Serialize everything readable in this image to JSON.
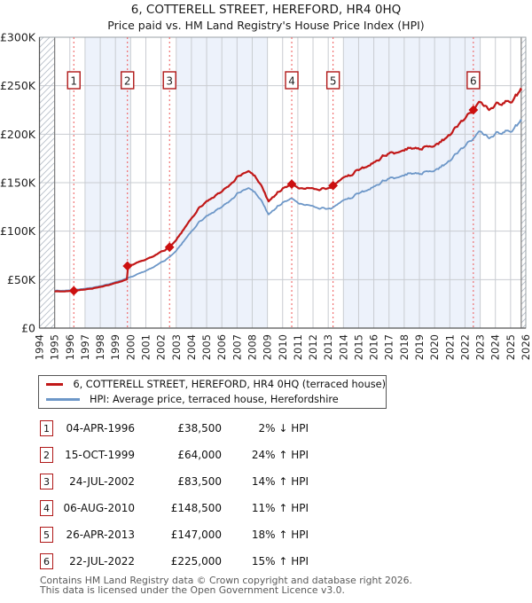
{
  "title": "6, COTTERELL STREET, HEREFORD, HR4 0HQ",
  "subtitle": "Price paid vs. HM Land Registry's House Price Index (HPI)",
  "legend": {
    "property": "6, COTTERELL STREET, HEREFORD, HR4 0HQ (terraced house)",
    "hpi": "HPI: Average price, terraced house, Herefordshire"
  },
  "table": {
    "rows": [
      {
        "num": "1",
        "date": "04-APR-1996",
        "price": "£38,500",
        "delta": "2% ↓ HPI"
      },
      {
        "num": "2",
        "date": "15-OCT-1999",
        "price": "£64,000",
        "delta": "24% ↑ HPI"
      },
      {
        "num": "3",
        "date": "24-JUL-2002",
        "price": "£83,500",
        "delta": "14% ↑ HPI"
      },
      {
        "num": "4",
        "date": "06-AUG-2010",
        "price": "£148,500",
        "delta": "11% ↑ HPI"
      },
      {
        "num": "5",
        "date": "26-APR-2013",
        "price": "£147,000",
        "delta": "18% ↑ HPI"
      },
      {
        "num": "6",
        "date": "22-JUL-2022",
        "price": "£225,000",
        "delta": "15% ↑ HPI"
      }
    ]
  },
  "footer": {
    "line1": "Contains HM Land Registry data © Crown copyright and database right 2026.",
    "line2": "This data is licensed under the Open Government Licence v3.0."
  },
  "chart_data": {
    "type": "line",
    "title": "Price paid vs. HM Land Registry's House Price Index (HPI)",
    "x_axis": {
      "start": 1994,
      "end": 2026,
      "tick_labels": [
        "1994",
        "1995",
        "1996",
        "1997",
        "1998",
        "1999",
        "2000",
        "2001",
        "2002",
        "2003",
        "2004",
        "2005",
        "2006",
        "2007",
        "2008",
        "2009",
        "2010",
        "2011",
        "2012",
        "2013",
        "2014",
        "2015",
        "2016",
        "2017",
        "2018",
        "2019",
        "2020",
        "2021",
        "2022",
        "2023",
        "2024",
        "2025",
        "2026"
      ]
    },
    "y_axis": {
      "min": 0,
      "max": 300000,
      "tick_interval": 50000,
      "labels": [
        "£0",
        "£50K",
        "£100K",
        "£150K",
        "£200K",
        "£250K",
        "£300K"
      ]
    },
    "data_start": 1995.0,
    "data_end": 2025.7,
    "shaded_periods": [
      [
        1997,
        2000
      ],
      [
        2003,
        2009
      ],
      [
        2014,
        2023
      ]
    ],
    "colors": {
      "property_line": "#c11818",
      "hpi_line": "#6d97c8",
      "sale_marker": "#cc0f0f",
      "sale_dashed_line": "#ee5555",
      "shaded_band": "#edf2fb",
      "grid": "#c9ccd1",
      "hatch": "#b8bfc9"
    },
    "series": [
      {
        "name": "6, COTTERELL STREET, HEREFORD, HR4 0HQ (terraced house)",
        "description": "HPI anchor values rescaled so the line passes through each recorded sale price; jump at sale 2"
      },
      {
        "name": "HPI: Average price, terraced house, Herefordshire",
        "description": "hpi_anchor_points interpolated"
      }
    ],
    "hpi_anchor_points": [
      [
        1995.0,
        38500
      ],
      [
        1995.6,
        38800
      ],
      [
        1996.26,
        39300
      ],
      [
        1997.0,
        40600
      ],
      [
        1997.5,
        41800
      ],
      [
        1998.0,
        43500
      ],
      [
        1998.5,
        45300
      ],
      [
        1999.0,
        47500
      ],
      [
        1999.79,
        51600
      ],
      [
        2000.3,
        54500
      ],
      [
        2001.0,
        59000
      ],
      [
        2001.5,
        63000
      ],
      [
        2002.0,
        67500
      ],
      [
        2002.56,
        73200
      ],
      [
        2003.0,
        80000
      ],
      [
        2003.5,
        90000
      ],
      [
        2004.0,
        100000
      ],
      [
        2004.5,
        109000
      ],
      [
        2005.0,
        116000
      ],
      [
        2005.5,
        120500
      ],
      [
        2006.0,
        125000
      ],
      [
        2006.5,
        131000
      ],
      [
        2007.0,
        138000
      ],
      [
        2007.4,
        143000
      ],
      [
        2007.75,
        146000
      ],
      [
        2008.2,
        140000
      ],
      [
        2008.6,
        131000
      ],
      [
        2009.05,
        117500
      ],
      [
        2009.4,
        121000
      ],
      [
        2010.0,
        129500
      ],
      [
        2010.6,
        133800
      ],
      [
        2011.1,
        128500
      ],
      [
        2011.5,
        127000
      ],
      [
        2012.0,
        126000
      ],
      [
        2012.4,
        123500
      ],
      [
        2013.0,
        123000
      ],
      [
        2013.32,
        124600
      ],
      [
        2014.0,
        131000
      ],
      [
        2014.5,
        134500
      ],
      [
        2015.0,
        139000
      ],
      [
        2015.5,
        143000
      ],
      [
        2016.0,
        146500
      ],
      [
        2016.5,
        150000
      ],
      [
        2017.0,
        153500
      ],
      [
        2017.5,
        156000
      ],
      [
        2018.0,
        157500
      ],
      [
        2018.5,
        159000
      ],
      [
        2019.0,
        159500
      ],
      [
        2019.5,
        161000
      ],
      [
        2020.0,
        162500
      ],
      [
        2020.6,
        168000
      ],
      [
        2021.0,
        174000
      ],
      [
        2021.5,
        181000
      ],
      [
        2022.0,
        188500
      ],
      [
        2022.55,
        195700
      ],
      [
        2022.9,
        205500
      ],
      [
        2023.2,
        199500
      ],
      [
        2023.6,
        197000
      ],
      [
        2024.0,
        199000
      ],
      [
        2024.5,
        201500
      ],
      [
        2025.0,
        204000
      ],
      [
        2025.4,
        207500
      ],
      [
        2025.7,
        213000
      ]
    ],
    "sales": [
      {
        "num": 1,
        "date": "04-APR-1996",
        "year_decimal": 1996.26,
        "price": 38500,
        "hpi_relative": "2% ↓ HPI"
      },
      {
        "num": 2,
        "date": "15-OCT-1999",
        "year_decimal": 1999.79,
        "price": 64000,
        "hpi_relative": "24% ↑ HPI"
      },
      {
        "num": 3,
        "date": "24-JUL-2002",
        "year_decimal": 2002.56,
        "price": 83500,
        "hpi_relative": "14% ↑ HPI"
      },
      {
        "num": 4,
        "date": "06-AUG-2010",
        "year_decimal": 2010.6,
        "price": 148500,
        "hpi_relative": "11% ↑ HPI"
      },
      {
        "num": 5,
        "date": "26-APR-2013",
        "year_decimal": 2013.32,
        "price": 147000,
        "hpi_relative": "18% ↑ HPI"
      },
      {
        "num": 6,
        "date": "22-JUL-2022",
        "year_decimal": 2022.55,
        "price": 225000,
        "hpi_relative": "15% ↑ HPI"
      }
    ]
  }
}
